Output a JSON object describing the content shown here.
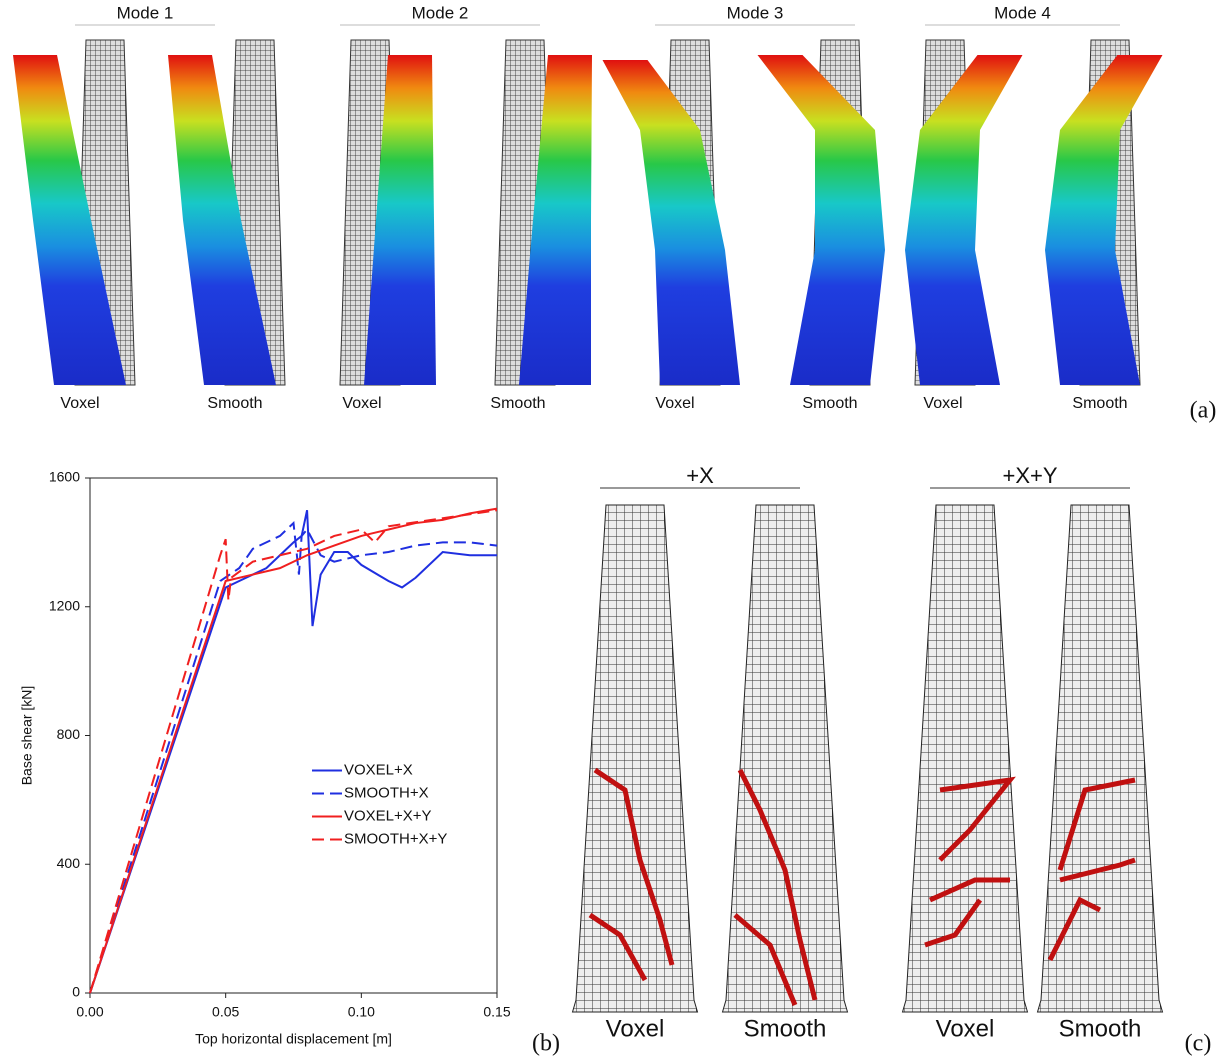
{
  "panel_a": {
    "modes": [
      {
        "title": "Mode 1",
        "labels": [
          "Voxel",
          "Smooth"
        ]
      },
      {
        "title": "Mode 2",
        "labels": [
          "Voxel",
          "Smooth"
        ]
      },
      {
        "title": "Mode 3",
        "labels": [
          "Voxel",
          "Smooth"
        ]
      },
      {
        "title": "Mode 4",
        "labels": [
          "Voxel",
          "Smooth"
        ]
      }
    ],
    "tag": "(a)"
  },
  "chart_data": {
    "type": "line",
    "x_label": "Top horizontal displacement [m]",
    "y_label": "Base shear [kN]",
    "xlim": [
      0,
      0.15
    ],
    "xticks": [
      {
        "value": 0,
        "label": "0.00"
      },
      0.05,
      {
        "value": 0.1,
        "label": "0.10"
      },
      0.15
    ],
    "ylim": [
      0,
      1600
    ],
    "yticks": [
      0,
      400,
      800,
      1200,
      1600
    ],
    "legend": "right",
    "series": [
      {
        "name": "VOXEL+X",
        "color": "#1f2fe0",
        "line_style": "solid",
        "x": [
          0,
          0.05,
          0.055,
          0.065,
          0.075,
          0.078,
          0.08,
          0.082,
          0.085,
          0.09,
          0.095,
          0.1,
          0.11,
          0.115,
          0.12,
          0.13,
          0.14,
          0.15
        ],
        "values": [
          0,
          1260,
          1280,
          1320,
          1400,
          1420,
          1500,
          1140,
          1300,
          1370,
          1370,
          1330,
          1280,
          1260,
          1290,
          1370,
          1360,
          1360
        ]
      },
      {
        "name": "SMOOTH+X",
        "color": "#1f2fe0",
        "line_style": "dashed",
        "x": [
          0,
          0.048,
          0.055,
          0.06,
          0.07,
          0.075,
          0.077,
          0.078,
          0.08,
          0.085,
          0.09,
          0.1,
          0.11,
          0.12,
          0.13,
          0.14,
          0.15
        ],
        "values": [
          0,
          1280,
          1320,
          1380,
          1420,
          1460,
          1300,
          1420,
          1440,
          1360,
          1340,
          1360,
          1370,
          1390,
          1400,
          1400,
          1390
        ]
      },
      {
        "name": "VOXEL+X+Y",
        "color": "#f01f1f",
        "line_style": "solid",
        "x": [
          0,
          0.05,
          0.06,
          0.07,
          0.08,
          0.09,
          0.1,
          0.11,
          0.12,
          0.13,
          0.14,
          0.15
        ],
        "values": [
          0,
          1280,
          1300,
          1320,
          1360,
          1390,
          1420,
          1440,
          1460,
          1470,
          1490,
          1505
        ]
      },
      {
        "name": "SMOOTH+X+Y",
        "color": "#f01f1f",
        "line_style": "dashed",
        "x": [
          0,
          0.048,
          0.05,
          0.051,
          0.052,
          0.06,
          0.07,
          0.08,
          0.09,
          0.1,
          0.105,
          0.11,
          0.15
        ],
        "values": [
          0,
          1360,
          1410,
          1220,
          1290,
          1340,
          1360,
          1380,
          1420,
          1440,
          1400,
          1450,
          1500
        ]
      }
    ]
  },
  "panel_b": {
    "tag": "(b)"
  },
  "panel_c": {
    "cases": [
      {
        "title": "+X",
        "labels": [
          "Voxel",
          "Smooth"
        ]
      },
      {
        "title": "+X+Y",
        "labels": [
          "Voxel",
          "Smooth"
        ]
      }
    ],
    "tag": "(c)"
  }
}
